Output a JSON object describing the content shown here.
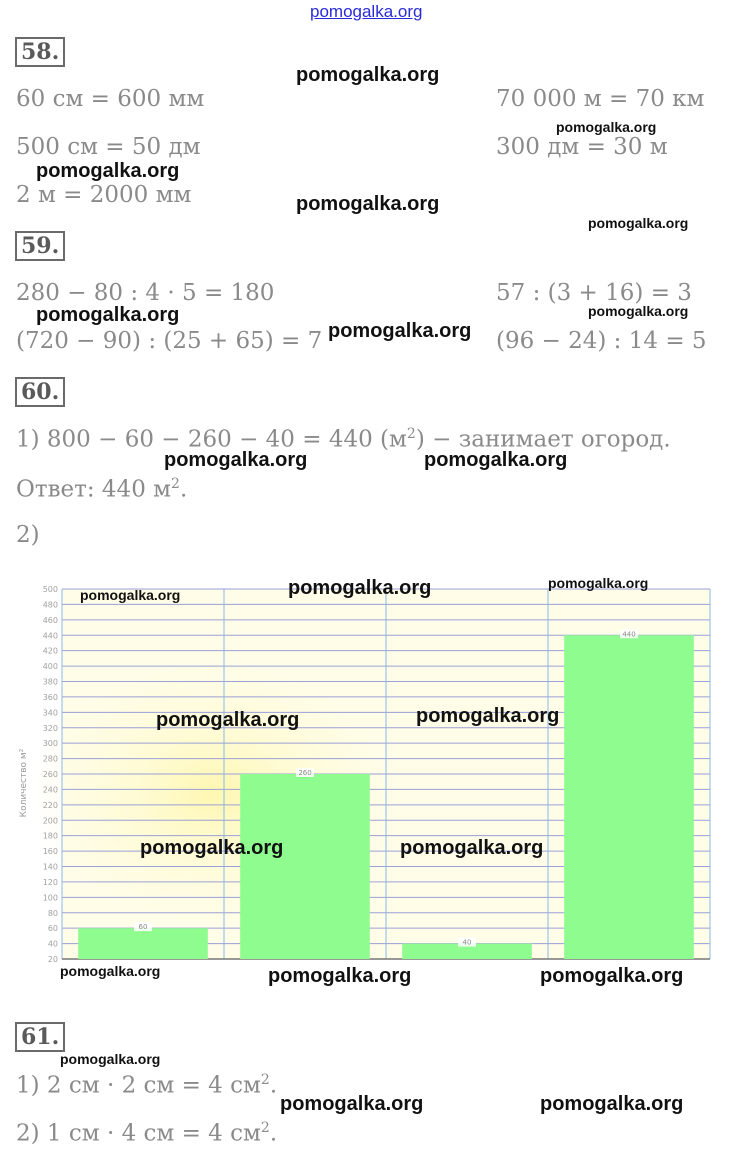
{
  "header_site": "pomogalka.org",
  "watermark": "pomogalka.org",
  "task58": {
    "number": "58.",
    "lines": [
      "60 см = 600 мм",
      "70 000 м = 70 км",
      "500 см = 50 дм",
      "300 дм = 30 м",
      "2 м = 2000 мм"
    ]
  },
  "task59": {
    "number": "59.",
    "lines": [
      "280 − 80 : 4 · 5 = 180",
      "57 : (3 + 16) = 3",
      "(720 − 90) : (25 + 65) = 7",
      "(96 − 24) : 14 = 5"
    ]
  },
  "task60": {
    "number": "60.",
    "line1_pre": "1) 800 − 60 − 260 − 40 = 440 (м",
    "line1_sup": "2",
    "line1_post": ") − занимает огород.",
    "answer_pre": "Ответ:  440 м",
    "answer_sup": "2",
    "answer_post": ".",
    "part2": "2)"
  },
  "task61": {
    "number": "61.",
    "line1_pre": "1) 2 см · 2 см = 4 см",
    "line1_sup": "2",
    "line1_post": ".",
    "line2_pre": "2) 1 см · 4 см = 4 см",
    "line2_sup": "2",
    "line2_post": "."
  },
  "chart_data": {
    "type": "bar",
    "categories": [
      "",
      "",
      "",
      ""
    ],
    "values": [
      60,
      260,
      40,
      440
    ],
    "data_labels": [
      "60",
      "260",
      "40",
      "440"
    ],
    "y_ticks": [
      "20",
      "40",
      "60",
      "80",
      "100",
      "120",
      "140",
      "160",
      "180",
      "200",
      "220",
      "240",
      "260",
      "280",
      "300",
      "320",
      "340",
      "360",
      "380",
      "400",
      "420",
      "440",
      "460",
      "480",
      "500"
    ],
    "ylabel": "Количество м²",
    "ylim": [
      20,
      500
    ],
    "grid": true,
    "bar_color": "#8ffc8f",
    "colors": {
      "grid_h": "#9aa0d8",
      "grid_v": "#88b8e8",
      "bg": "#fffde8"
    }
  }
}
